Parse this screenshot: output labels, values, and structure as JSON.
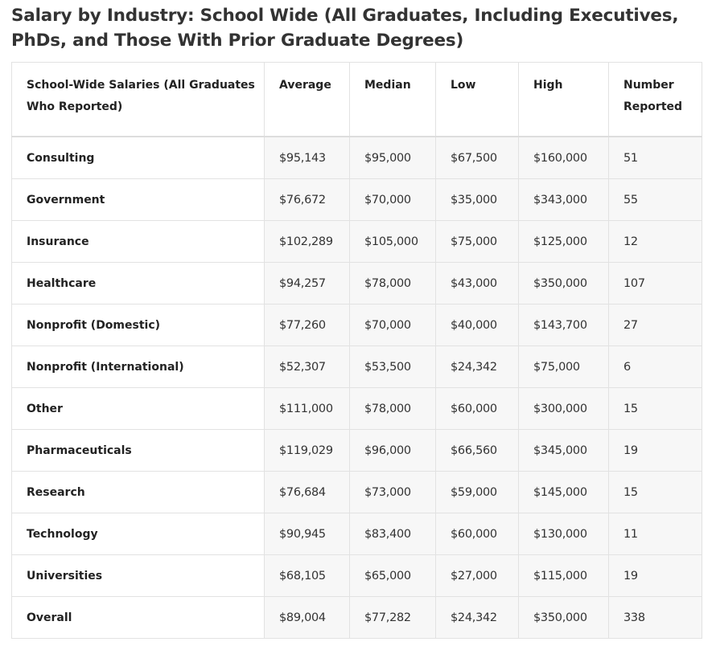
{
  "title": "Salary by Industry: School Wide (All Graduates, Including Executives, PhDs, and Those With Prior Graduate Degrees)",
  "table": {
    "headers": [
      "School-Wide Salaries (All Graduates Who Reported)",
      "Average",
      "Median",
      "Low",
      "High",
      "Number Reported"
    ],
    "rows": [
      [
        "Consulting",
        "$95,143",
        "$95,000",
        "$67,500",
        "$160,000",
        "51"
      ],
      [
        "Government",
        "$76,672",
        "$70,000",
        "$35,000",
        "$343,000",
        "55"
      ],
      [
        "Insurance",
        "$102,289",
        "$105,000",
        "$75,000",
        "$125,000",
        "12"
      ],
      [
        "Healthcare",
        "$94,257",
        "$78,000",
        "$43,000",
        "$350,000",
        "107"
      ],
      [
        "Nonprofit (Domestic)",
        "$77,260",
        "$70,000",
        "$40,000",
        "$143,700",
        "27"
      ],
      [
        "Nonprofit (International)",
        "$52,307",
        "$53,500",
        "$24,342",
        "$75,000",
        "6"
      ],
      [
        "Other",
        "$111,000",
        "$78,000",
        "$60,000",
        "$300,000",
        "15"
      ],
      [
        "Pharmaceuticals",
        "$119,029",
        "$96,000",
        "$66,560",
        "$345,000",
        "19"
      ],
      [
        "Research",
        "$76,684",
        "$73,000",
        "$59,000",
        "$145,000",
        "15"
      ],
      [
        "Technology",
        "$90,945",
        "$83,400",
        "$60,000",
        "$130,000",
        "11"
      ],
      [
        "Universities",
        "$68,105",
        "$65,000",
        "$27,000",
        "$115,000",
        "19"
      ],
      [
        "Overall",
        "$89,004",
        "$77,282",
        "$24,342",
        "$350,000",
        "338"
      ]
    ]
  }
}
